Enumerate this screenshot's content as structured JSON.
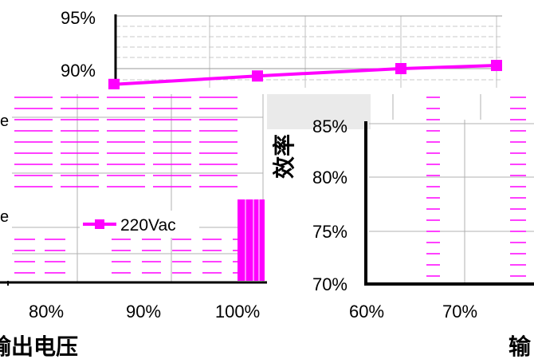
{
  "chart_data": [
    {
      "type": "line",
      "panel": "top",
      "y_ticks": [
        "95%",
        "90%"
      ],
      "ylim": [
        85,
        95
      ],
      "series": [
        {
          "color": "#ff00ff",
          "marker": "square",
          "values": [
            88.5,
            89.3,
            90.0,
            90.3
          ]
        }
      ]
    },
    {
      "type": "line",
      "panel": "bottom-left",
      "x_ticks": [
        "80%",
        "90%",
        "100%"
      ],
      "xlabel": "输出电压",
      "legend": {
        "label": "220Vac",
        "color": "#ff00ff",
        "marker": "square",
        "placement": "lower-left"
      },
      "grid": true
    },
    {
      "type": "line",
      "panel": "bottom-right",
      "y_ticks": [
        "85%",
        "80%",
        "75%",
        "70%"
      ],
      "ylabel": "效率",
      "x_ticks": [
        "60%",
        "70%"
      ],
      "xlabel_fragment": "输",
      "grid": true
    }
  ]
}
